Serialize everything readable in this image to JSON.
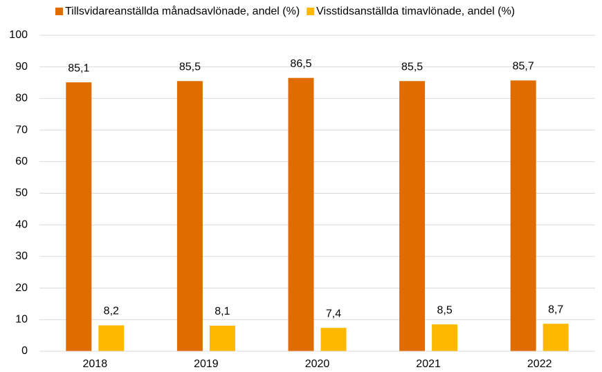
{
  "chart_data": {
    "type": "bar",
    "categories": [
      "2018",
      "2019",
      "2020",
      "2021",
      "2022"
    ],
    "series": [
      {
        "name": "Tillsvidareanställda månadsavlönade, andel (%)",
        "color": "#e06c00",
        "values": [
          85.1,
          85.5,
          86.5,
          85.5,
          85.7
        ],
        "value_labels": [
          "85,1",
          "85,5",
          "86,5",
          "85,5",
          "85,7"
        ]
      },
      {
        "name": "Visstidsanställda timavlönade, andel (%)",
        "color": "#ffb800",
        "values": [
          8.2,
          8.1,
          7.4,
          8.5,
          8.7
        ],
        "value_labels": [
          "8,2",
          "8,1",
          "7,4",
          "8,5",
          "8,7"
        ]
      }
    ],
    "ylim": [
      0,
      100
    ],
    "yticks": [
      0,
      10,
      20,
      30,
      40,
      50,
      60,
      70,
      80,
      90,
      100
    ],
    "grid": true,
    "legend": "top"
  }
}
